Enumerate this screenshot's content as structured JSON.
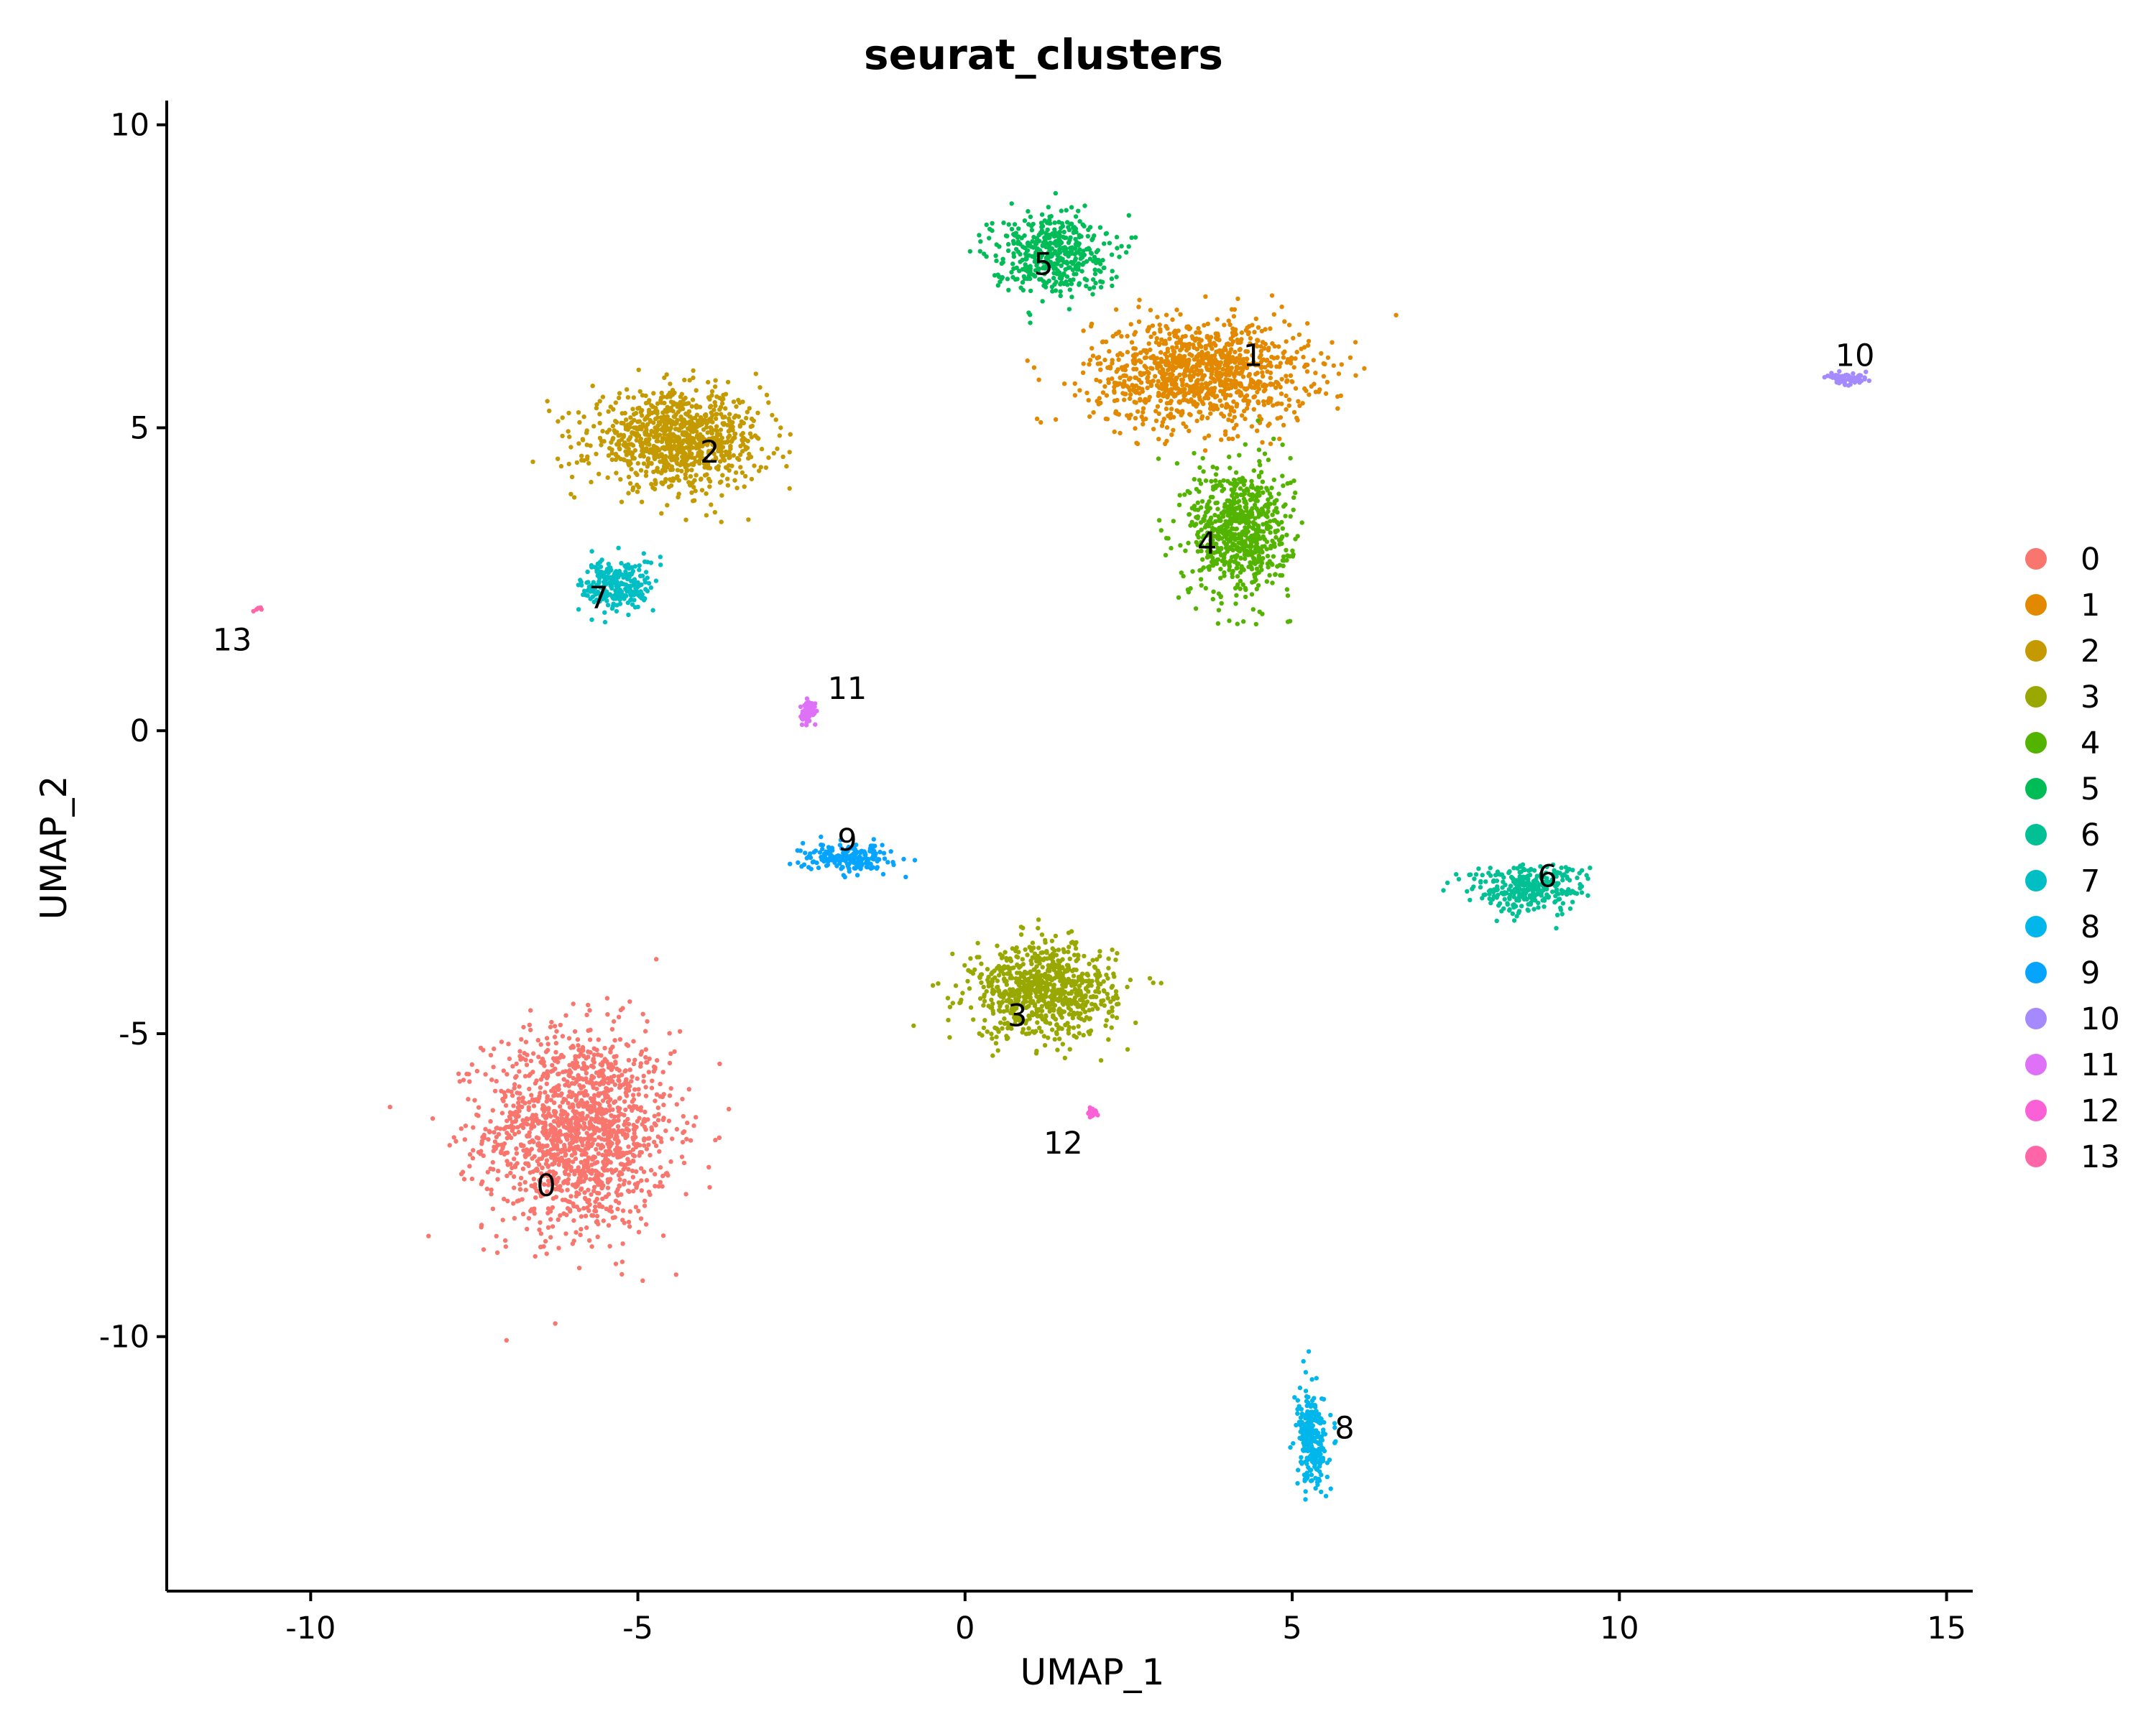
{
  "chart_data": {
    "type": "scatter",
    "title": "seurat_clusters",
    "xlabel": "UMAP_1",
    "ylabel": "UMAP_2",
    "xlim": [
      -12.2,
      15.4
    ],
    "ylim": [
      -14.2,
      10.4
    ],
    "x_ticks": [
      -10,
      -5,
      0,
      5,
      10,
      15
    ],
    "x_tick_labels": [
      "-10",
      "-5",
      "0",
      "5",
      "10",
      "15"
    ],
    "y_ticks": [
      -10,
      -5,
      0,
      5,
      10
    ],
    "y_tick_labels": [
      "-10",
      "-5",
      "0",
      "5",
      "10"
    ],
    "grid": false,
    "legend_position": "right",
    "series": [
      {
        "name": "0",
        "color": "#F8766D",
        "label_at": [
          -6.4,
          -7.5
        ],
        "center": [
          -5.9,
          -6.6
        ],
        "spread": [
          1.3,
          1.5
        ],
        "n": 1500
      },
      {
        "name": "1",
        "color": "#E38900",
        "label_at": [
          4.4,
          6.2
        ],
        "center": [
          3.6,
          5.9
        ],
        "spread": [
          1.5,
          0.8
        ],
        "n": 1100
      },
      {
        "name": "2",
        "color": "#C49A00",
        "label_at": [
          -3.9,
          4.6
        ],
        "center": [
          -4.4,
          4.8
        ],
        "spread": [
          1.2,
          0.7
        ],
        "n": 950
      },
      {
        "name": "3",
        "color": "#99A800",
        "label_at": [
          0.8,
          -4.7
        ],
        "center": [
          1.2,
          -4.3
        ],
        "spread": [
          1.0,
          0.7
        ],
        "n": 800
      },
      {
        "name": "4",
        "color": "#53B400",
        "label_at": [
          3.7,
          3.1
        ],
        "center": [
          4.2,
          3.3
        ],
        "spread": [
          0.7,
          1.0
        ],
        "n": 700
      },
      {
        "name": "5",
        "color": "#00BC56",
        "label_at": [
          1.2,
          7.7
        ],
        "center": [
          1.3,
          7.9
        ],
        "spread": [
          0.8,
          0.6
        ],
        "n": 450
      },
      {
        "name": "6",
        "color": "#00C094",
        "label_at": [
          8.9,
          -2.4
        ],
        "center": [
          8.6,
          -2.6
        ],
        "spread": [
          0.8,
          0.35
        ],
        "n": 320
      },
      {
        "name": "7",
        "color": "#00BFC4",
        "label_at": [
          -5.6,
          2.2
        ],
        "center": [
          -5.3,
          2.4
        ],
        "spread": [
          0.5,
          0.4
        ],
        "n": 260
      },
      {
        "name": "8",
        "color": "#00B6EB",
        "label_at": [
          5.8,
          -11.5
        ],
        "center": [
          5.3,
          -11.7
        ],
        "spread": [
          0.2,
          0.7
        ],
        "n": 280
      },
      {
        "name": "9",
        "color": "#06A4FF",
        "label_at": [
          -1.8,
          -1.8
        ],
        "center": [
          -1.8,
          -2.1
        ],
        "spread": [
          0.6,
          0.2
        ],
        "n": 200
      },
      {
        "name": "10",
        "color": "#A58AFF",
        "label_at": [
          13.6,
          6.2
        ],
        "center": [
          13.5,
          5.8
        ],
        "spread": [
          0.3,
          0.08
        ],
        "n": 70
      },
      {
        "name": "11",
        "color": "#DF70F8",
        "label_at": [
          -1.8,
          0.7
        ],
        "center": [
          -2.4,
          0.3
        ],
        "spread": [
          0.1,
          0.2
        ],
        "n": 60
      },
      {
        "name": "12",
        "color": "#FB61D7",
        "label_at": [
          1.5,
          -6.8
        ],
        "center": [
          1.95,
          -6.3
        ],
        "spread": [
          0.07,
          0.1
        ],
        "n": 30
      },
      {
        "name": "13",
        "color": "#FF66A8",
        "label_at": [
          -11.2,
          1.5
        ],
        "center": [
          -10.8,
          2.0
        ],
        "spread": [
          0.08,
          0.04
        ],
        "n": 5
      }
    ]
  }
}
